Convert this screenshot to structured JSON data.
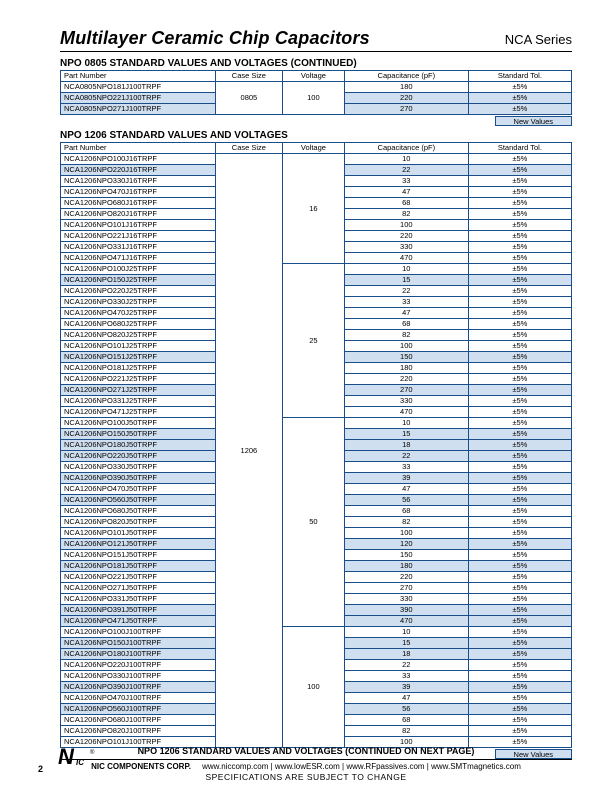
{
  "colors": {
    "border": "#1a4e8a",
    "highlight": "#d0dff0",
    "text": "#000000",
    "background": "#ffffff"
  },
  "header": {
    "title": "Multilayer Ceramic Chip Capacitors",
    "series": "NCA Series"
  },
  "section1": {
    "title": "NPO 0805 STANDARD VALUES AND VOLTAGES (CONTINUED)",
    "columns": [
      "Part Number",
      "Case Size",
      "Voltage",
      "Capacitance (pF)",
      "Standard Tol."
    ],
    "case_size": "0805",
    "voltage": "100",
    "rows": [
      {
        "part": "NCA0805NPO181J100TRPF",
        "cap": "180",
        "tol": "±5%",
        "hl": false
      },
      {
        "part": "NCA0805NPO221J100TRPF",
        "cap": "220",
        "tol": "±5%",
        "hl": true
      },
      {
        "part": "NCA0805NPO271J100TRPF",
        "cap": "270",
        "tol": "±5%",
        "hl": true
      }
    ],
    "new_values_label": "New Values"
  },
  "section2": {
    "title": "NPO 1206 STANDARD VALUES AND VOLTAGES",
    "columns": [
      "Part Number",
      "Case Size",
      "Voltage",
      "Capacitance (pF)",
      "Standard Tol."
    ],
    "case_size": "1206",
    "voltage_groups": [
      {
        "voltage": "16",
        "rows": [
          {
            "part": "NCA1206NPO100J16TRPF",
            "cap": "10",
            "tol": "±5%",
            "hl": false
          },
          {
            "part": "NCA1206NPO220J16TRPF",
            "cap": "22",
            "tol": "±5%",
            "hl": true
          },
          {
            "part": "NCA1206NPO330J16TRPF",
            "cap": "33",
            "tol": "±5%",
            "hl": false
          },
          {
            "part": "NCA1206NPO470J16TRPF",
            "cap": "47",
            "tol": "±5%",
            "hl": false
          },
          {
            "part": "NCA1206NPO680J16TRPF",
            "cap": "68",
            "tol": "±5%",
            "hl": false
          },
          {
            "part": "NCA1206NPO820J16TRPF",
            "cap": "82",
            "tol": "±5%",
            "hl": false
          },
          {
            "part": "NCA1206NPO101J16TRPF",
            "cap": "100",
            "tol": "±5%",
            "hl": false
          },
          {
            "part": "NCA1206NPO221J16TRPF",
            "cap": "220",
            "tol": "±5%",
            "hl": false
          },
          {
            "part": "NCA1206NPO331J16TRPF",
            "cap": "330",
            "tol": "±5%",
            "hl": false
          },
          {
            "part": "NCA1206NPO471J16TRPF",
            "cap": "470",
            "tol": "±5%",
            "hl": false
          }
        ]
      },
      {
        "voltage": "25",
        "rows": [
          {
            "part": "NCA1206NPO100J25TRPF",
            "cap": "10",
            "tol": "±5%",
            "hl": false
          },
          {
            "part": "NCA1206NPO150J25TRPF",
            "cap": "15",
            "tol": "±5%",
            "hl": true
          },
          {
            "part": "NCA1206NPO220J25TRPF",
            "cap": "22",
            "tol": "±5%",
            "hl": false
          },
          {
            "part": "NCA1206NPO330J25TRPF",
            "cap": "33",
            "tol": "±5%",
            "hl": false
          },
          {
            "part": "NCA1206NPO470J25TRPF",
            "cap": "47",
            "tol": "±5%",
            "hl": false
          },
          {
            "part": "NCA1206NPO680J25TRPF",
            "cap": "68",
            "tol": "±5%",
            "hl": false
          },
          {
            "part": "NCA1206NPO820J25TRPF",
            "cap": "82",
            "tol": "±5%",
            "hl": false
          },
          {
            "part": "NCA1206NPO101J25TRPF",
            "cap": "100",
            "tol": "±5%",
            "hl": false
          },
          {
            "part": "NCA1206NPO151J25TRPF",
            "cap": "150",
            "tol": "±5%",
            "hl": true
          },
          {
            "part": "NCA1206NPO181J25TRPF",
            "cap": "180",
            "tol": "±5%",
            "hl": false
          },
          {
            "part": "NCA1206NPO221J25TRPF",
            "cap": "220",
            "tol": "±5%",
            "hl": false
          },
          {
            "part": "NCA1206NPO271J25TRPF",
            "cap": "270",
            "tol": "±5%",
            "hl": true
          },
          {
            "part": "NCA1206NPO331J25TRPF",
            "cap": "330",
            "tol": "±5%",
            "hl": false
          },
          {
            "part": "NCA1206NPO471J25TRPF",
            "cap": "470",
            "tol": "±5%",
            "hl": false
          }
        ]
      },
      {
        "voltage": "50",
        "rows": [
          {
            "part": "NCA1206NPO100J50TRPF",
            "cap": "10",
            "tol": "±5%",
            "hl": false
          },
          {
            "part": "NCA1206NPO150J50TRPF",
            "cap": "15",
            "tol": "±5%",
            "hl": true
          },
          {
            "part": "NCA1206NPO180J50TRPF",
            "cap": "18",
            "tol": "±5%",
            "hl": true
          },
          {
            "part": "NCA1206NPO220J50TRPF",
            "cap": "22",
            "tol": "±5%",
            "hl": true
          },
          {
            "part": "NCA1206NPO330J50TRPF",
            "cap": "33",
            "tol": "±5%",
            "hl": false
          },
          {
            "part": "NCA1206NPO390J50TRPF",
            "cap": "39",
            "tol": "±5%",
            "hl": true
          },
          {
            "part": "NCA1206NPO470J50TRPF",
            "cap": "47",
            "tol": "±5%",
            "hl": false
          },
          {
            "part": "NCA1206NPO560J50TRPF",
            "cap": "56",
            "tol": "±5%",
            "hl": true
          },
          {
            "part": "NCA1206NPO680J50TRPF",
            "cap": "68",
            "tol": "±5%",
            "hl": false
          },
          {
            "part": "NCA1206NPO820J50TRPF",
            "cap": "82",
            "tol": "±5%",
            "hl": false
          },
          {
            "part": "NCA1206NPO101J50TRPF",
            "cap": "100",
            "tol": "±5%",
            "hl": false
          },
          {
            "part": "NCA1206NPO121J50TRPF",
            "cap": "120",
            "tol": "±5%",
            "hl": true
          },
          {
            "part": "NCA1206NPO151J50TRPF",
            "cap": "150",
            "tol": "±5%",
            "hl": false
          },
          {
            "part": "NCA1206NPO181J50TRPF",
            "cap": "180",
            "tol": "±5%",
            "hl": true
          },
          {
            "part": "NCA1206NPO221J50TRPF",
            "cap": "220",
            "tol": "±5%",
            "hl": false
          },
          {
            "part": "NCA1206NPO271J50TRPF",
            "cap": "270",
            "tol": "±5%",
            "hl": false
          },
          {
            "part": "NCA1206NPO331J50TRPF",
            "cap": "330",
            "tol": "±5%",
            "hl": false
          },
          {
            "part": "NCA1206NPO391J50TRPF",
            "cap": "390",
            "tol": "±5%",
            "hl": true
          },
          {
            "part": "NCA1206NPO471J50TRPF",
            "cap": "470",
            "tol": "±5%",
            "hl": true
          }
        ]
      },
      {
        "voltage": "100",
        "rows": [
          {
            "part": "NCA1206NPO100J100TRPF",
            "cap": "10",
            "tol": "±5%",
            "hl": false
          },
          {
            "part": "NCA1206NPO150J100TRPF",
            "cap": "15",
            "tol": "±5%",
            "hl": true
          },
          {
            "part": "NCA1206NPO180J100TRPF",
            "cap": "18",
            "tol": "±5%",
            "hl": true
          },
          {
            "part": "NCA1206NPO220J100TRPF",
            "cap": "22",
            "tol": "±5%",
            "hl": false
          },
          {
            "part": "NCA1206NPO330J100TRPF",
            "cap": "33",
            "tol": "±5%",
            "hl": false
          },
          {
            "part": "NCA1206NPO390J100TRPF",
            "cap": "39",
            "tol": "±5%",
            "hl": true
          },
          {
            "part": "NCA1206NPO470J100TRPF",
            "cap": "47",
            "tol": "±5%",
            "hl": false
          },
          {
            "part": "NCA1206NPO560J100TRPF",
            "cap": "56",
            "tol": "±5%",
            "hl": true
          },
          {
            "part": "NCA1206NPO680J100TRPF",
            "cap": "68",
            "tol": "±5%",
            "hl": false
          },
          {
            "part": "NCA1206NPO820J100TRPF",
            "cap": "82",
            "tol": "±5%",
            "hl": false
          },
          {
            "part": "NCA1206NPO101J100TRPF",
            "cap": "100",
            "tol": "±5%",
            "hl": false
          }
        ]
      }
    ],
    "new_values_label": "New Values"
  },
  "footer": {
    "continue_text": "NPO 1206 STANDARD VALUES AND VOLTAGES (CONTINUED ON NEXT PAGE)",
    "corp": "NIC COMPONENTS CORP.",
    "links_text": "www.niccomp.com   |   www.lowESR.com   |   www.RFpassives.com   |   www.SMTmagnetics.com",
    "spec": "SPECIFICATIONS ARE SUBJECT TO CHANGE",
    "page": "2",
    "logo_n": "N",
    "logo_ic": "IC",
    "logo_reg": "®"
  }
}
